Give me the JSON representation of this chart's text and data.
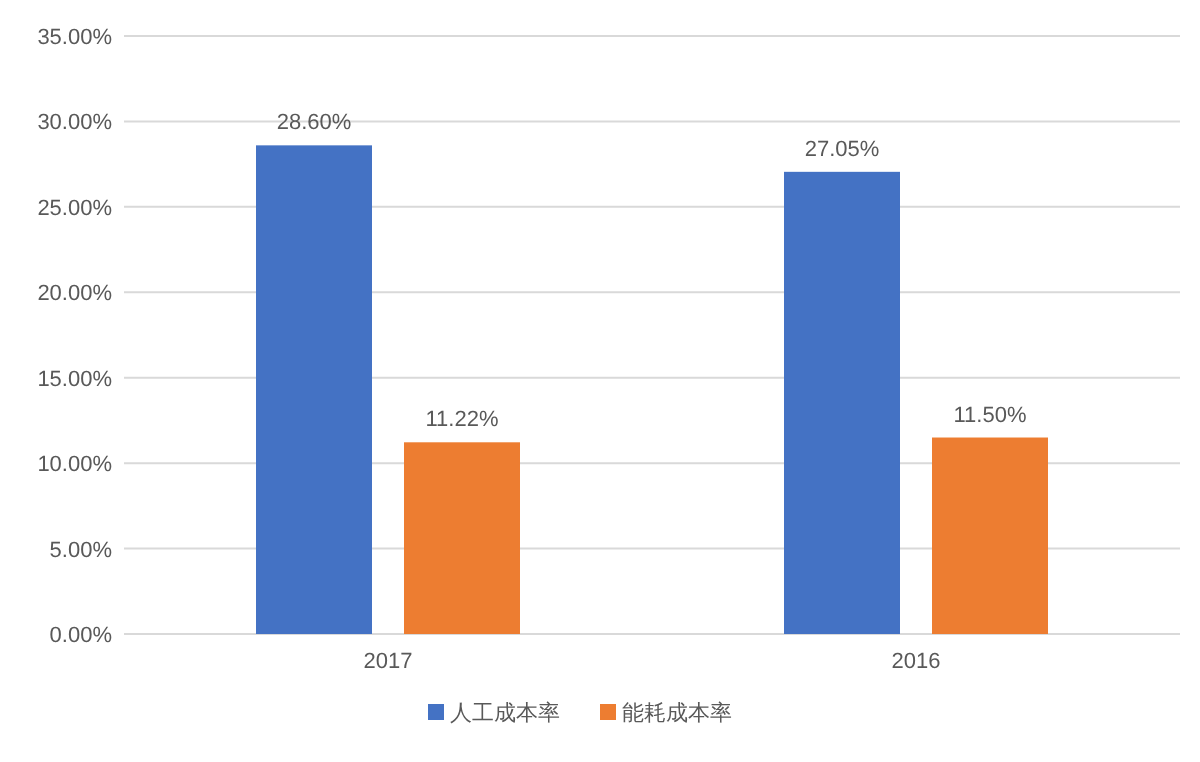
{
  "chart_data": {
    "type": "bar",
    "categories": [
      "2017",
      "2016"
    ],
    "series": [
      {
        "name": "人工成本率",
        "color": "#4472c4",
        "values": [
          28.6,
          27.05
        ],
        "value_labels": [
          "28.60%",
          "27.05%"
        ]
      },
      {
        "name": "能耗成本率",
        "color": "#ed7d31",
        "values": [
          11.22,
          11.5
        ],
        "value_labels": [
          "11.22%",
          "11.50%"
        ]
      }
    ],
    "ylim": [
      0,
      35
    ],
    "yticks": [
      {
        "value": 0,
        "label": "0.00%"
      },
      {
        "value": 5,
        "label": "5.00%"
      },
      {
        "value": 10,
        "label": "10.00%"
      },
      {
        "value": 15,
        "label": "15.00%"
      },
      {
        "value": 20,
        "label": "20.00%"
      },
      {
        "value": 25,
        "label": "25.00%"
      },
      {
        "value": 30,
        "label": "30.00%"
      },
      {
        "value": 35,
        "label": "35.00%"
      }
    ],
    "grid": "y",
    "legend": "bottom"
  }
}
